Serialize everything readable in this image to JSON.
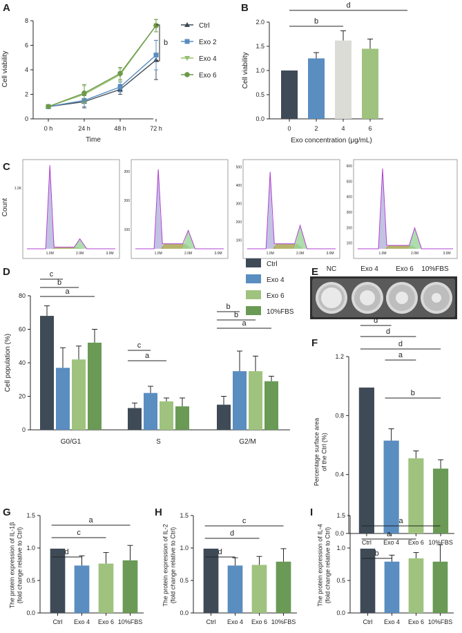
{
  "colors": {
    "ctrl": "#3f4a57",
    "exo2": "#5a8dc0",
    "exo4": "#5a8dc0",
    "exo4_line": "#93bf6b",
    "exo6": "#9fc37e",
    "exo6_line": "#6d9a4a",
    "fbs": "#6a9a55",
    "exo4_B": "#dcdcd6",
    "purple": "#b040d0",
    "axis": "#222222"
  },
  "chart_data": [
    {
      "id": "A",
      "letter": "A",
      "type": "line",
      "title": "",
      "xlabel": "Time",
      "ylabel": "Cell viability",
      "categories": [
        "0 h",
        "24 h",
        "48 h",
        "72 h"
      ],
      "ylim": [
        0,
        8
      ],
      "yticks": [
        "0",
        "2",
        "4",
        "6",
        "8"
      ],
      "series": [
        {
          "name": "Ctrl",
          "values": [
            1.0,
            1.4,
            2.4,
            4.8
          ],
          "err": [
            0.1,
            0.5,
            0.4,
            1.6
          ]
        },
        {
          "name": "Exo 2",
          "values": [
            1.0,
            1.5,
            2.6,
            5.2
          ],
          "err": [
            0.1,
            0.5,
            0.4,
            1.2
          ]
        },
        {
          "name": "Exo 4",
          "values": [
            1.0,
            2.0,
            3.6,
            7.6
          ],
          "err": [
            0.1,
            0.7,
            0.5,
            0.5
          ]
        },
        {
          "name": "Exo 6",
          "values": [
            1.0,
            2.1,
            3.7,
            7.6
          ],
          "err": [
            0.1,
            0.7,
            0.5,
            0.5
          ]
        }
      ],
      "annotation": "b"
    },
    {
      "id": "B",
      "letter": "B",
      "type": "bar",
      "xlabel": "Exo concentration (μg/mL)",
      "ylabel": "Cell viability",
      "categories": [
        "0",
        "2",
        "4",
        "6"
      ],
      "values": [
        1.0,
        1.25,
        1.62,
        1.45
      ],
      "err": [
        0.0,
        0.12,
        0.2,
        0.2
      ],
      "ylim": [
        0,
        2.0
      ],
      "yticks": [
        "0.0",
        "0.5",
        "1.0",
        "1.5",
        "2.0"
      ],
      "sig": [
        {
          "label": "b",
          "from": 0,
          "to": 2
        },
        {
          "label": "d",
          "from": 0,
          "to": 4
        }
      ]
    },
    {
      "id": "C",
      "letter": "C",
      "type": "histogram",
      "ylabel": "Count",
      "panels": [
        {
          "yticks": [
            "1.2K"
          ],
          "xticks": [
            "1.0M",
            "2.0M",
            "3.0M"
          ]
        },
        {
          "yticks": [
            "100",
            "200",
            "300"
          ],
          "xticks": [
            "1.0M",
            "2.0M",
            "3.0M"
          ]
        },
        {
          "yticks": [
            "100",
            "200",
            "300",
            "400",
            "500"
          ],
          "xticks": [
            "1.0M",
            "2.0M",
            "3.0M"
          ]
        },
        {
          "yticks": [
            "100",
            "200",
            "300",
            "400",
            "500",
            "600"
          ],
          "xticks": [
            "1.0M",
            "2.0M",
            "3.0M"
          ]
        }
      ]
    },
    {
      "id": "D",
      "letter": "D",
      "type": "bar",
      "ylabel": "Cell population (%)",
      "categories": [
        "G0/G1",
        "S",
        "G2/M"
      ],
      "series": [
        {
          "name": "Ctrl",
          "values": [
            68,
            13,
            15
          ],
          "err": [
            6,
            3,
            5
          ]
        },
        {
          "name": "Exo 4",
          "values": [
            37,
            22,
            35
          ],
          "err": [
            12,
            4,
            12
          ]
        },
        {
          "name": "Exo 6",
          "values": [
            42,
            17,
            35
          ],
          "err": [
            8,
            2,
            9
          ]
        },
        {
          "name": "10%FBS",
          "values": [
            52,
            14,
            29
          ],
          "err": [
            8,
            5,
            3
          ]
        }
      ],
      "ylim": [
        0,
        80
      ],
      "yticks": [
        "0",
        "20",
        "40",
        "60",
        "80"
      ],
      "sig": [
        {
          "label": "c",
          "group": 0,
          "from": 0,
          "to": 1
        },
        {
          "label": "b",
          "group": 0,
          "from": 0,
          "to": 2
        },
        {
          "label": "a",
          "group": 0,
          "from": 0,
          "to": 3
        },
        {
          "label": "c",
          "group": 1,
          "from": 0,
          "to": 1
        },
        {
          "label": "a",
          "group": 1,
          "from": 0,
          "to": 2
        },
        {
          "label": "b",
          "group": 2,
          "from": 0,
          "to": 1
        },
        {
          "label": "b",
          "group": 2,
          "from": 0,
          "to": 2
        },
        {
          "label": "a",
          "group": 2,
          "from": 0,
          "to": 3
        }
      ]
    },
    {
      "id": "E",
      "letter": "E",
      "type": "image",
      "labels": [
        "NC",
        "Exo 4",
        "Exo 6",
        "10%FBS"
      ]
    },
    {
      "id": "F",
      "letter": "F",
      "type": "bar",
      "ylabel": "Percentage surface area\nof the Ctrl (%)",
      "categories": [
        "Ctrl",
        "Exo 4",
        "Exo 6",
        "10%FBS"
      ],
      "values": [
        0.99,
        0.63,
        0.51,
        0.44
      ],
      "err": [
        0.0,
        0.08,
        0.05,
        0.06
      ],
      "ylim": [
        0,
        1.2
      ],
      "yticks": [
        "0.0",
        "0.4",
        "0.8",
        "1.2"
      ],
      "sig": [
        {
          "label": "d",
          "from": 0,
          "to": 1
        },
        {
          "label": "d",
          "from": 0,
          "to": 2
        },
        {
          "label": "d",
          "from": 0,
          "to": 3
        },
        {
          "label": "a",
          "from": 1,
          "to": 2
        },
        {
          "label": "b",
          "from": 1,
          "to": 3
        }
      ]
    },
    {
      "id": "G",
      "letter": "G",
      "type": "bar",
      "ylabel": "The protein expression of IL-1β\n(fold change relative to Ctrl)",
      "categories": [
        "Ctrl",
        "Exo 4",
        "Exo 6",
        "10%FBS"
      ],
      "values": [
        0.99,
        0.73,
        0.76,
        0.81
      ],
      "err": [
        0.0,
        0.15,
        0.17,
        0.23
      ],
      "ylim": [
        0,
        1.5
      ],
      "yticks": [
        "0.0",
        "0.5",
        "1.0",
        "1.5"
      ],
      "sig": [
        {
          "label": "d",
          "from": 0,
          "to": 1
        },
        {
          "label": "c",
          "from": 0,
          "to": 2
        },
        {
          "label": "a",
          "from": 0,
          "to": 3
        }
      ]
    },
    {
      "id": "H",
      "letter": "H",
      "type": "bar",
      "ylabel": "The protein expression of IL-2\n(fold change relative to Ctrl)",
      "categories": [
        "Ctrl",
        "Exo 4",
        "Exo 6",
        "10%FBS"
      ],
      "values": [
        0.99,
        0.73,
        0.74,
        0.79
      ],
      "err": [
        0.0,
        0.12,
        0.13,
        0.2
      ],
      "ylim": [
        0,
        1.5
      ],
      "yticks": [
        "0.0",
        "0.5",
        "1.0",
        "1.5"
      ],
      "sig": [
        {
          "label": "d",
          "from": 0,
          "to": 1
        },
        {
          "label": "d",
          "from": 0,
          "to": 2
        },
        {
          "label": "c",
          "from": 0,
          "to": 3
        }
      ]
    },
    {
      "id": "I",
      "letter": "I",
      "type": "bar",
      "ylabel": "The protein expression of IL-4\n(fold change relative to Ctrl)",
      "categories": [
        "Ctrl",
        "Exo 4",
        "Exo 6",
        "10%FBS"
      ],
      "values": [
        0.99,
        0.79,
        0.84,
        0.79
      ],
      "err": [
        0.0,
        0.1,
        0.09,
        0.26
      ],
      "ylim": [
        0,
        1.5
      ],
      "yticks": [
        "0.0",
        "0.5",
        "1.0",
        "1.5"
      ],
      "sig": [
        {
          "label": "b",
          "from": 0,
          "to": 1
        },
        {
          "label": "a",
          "from": 0,
          "to": 2
        },
        {
          "label": "a",
          "from": 0,
          "to": 3
        }
      ]
    }
  ],
  "legend_D": [
    "Ctrl",
    "Exo 4",
    "Exo 6",
    "10%FBS"
  ]
}
